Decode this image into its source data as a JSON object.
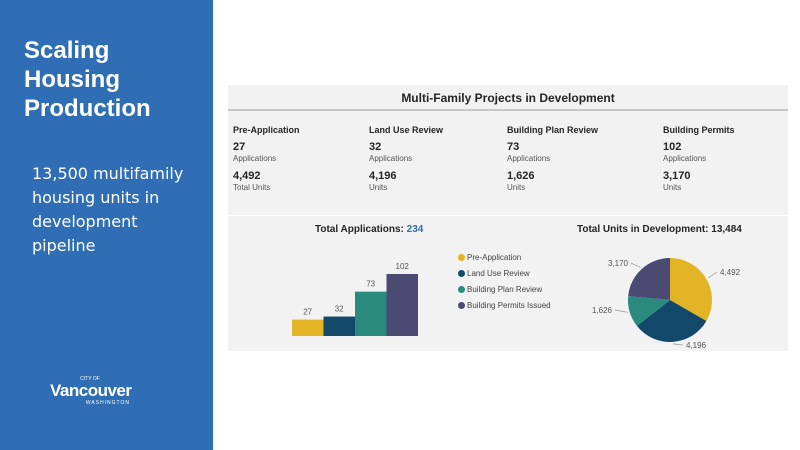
{
  "slide": {
    "title": "Scaling Housing Production",
    "subtitle": "13,500 multifamily housing units in development pipeline",
    "logo": {
      "top": "CITY OF",
      "name": "Vancouver",
      "bottom": "WASHINGTON"
    }
  },
  "card": {
    "title": "Multi-Family Projects in Development",
    "stages": [
      {
        "name": "Pre-Application",
        "applications": "27",
        "applications_label": "Applications",
        "units": "4,492",
        "units_label": "Total Units"
      },
      {
        "name": "Land Use Review",
        "applications": "32",
        "applications_label": "Applications",
        "units": "4,196",
        "units_label": "Units"
      },
      {
        "name": "Building Plan Review",
        "applications": "73",
        "applications_label": "Applications",
        "units": "1,626",
        "units_label": "Units"
      },
      {
        "name": "Building Permits",
        "applications": "102",
        "applications_label": "Applications",
        "units": "3,170",
        "units_label": "Units"
      }
    ]
  },
  "colors": {
    "slide_bg": "#2f6db5",
    "accent": "#2f6db5",
    "series": [
      "#e3b426",
      "#12496b",
      "#2a8a7e",
      "#4a4a72"
    ]
  },
  "chart_data": [
    {
      "type": "bar",
      "title_label": "Total Applications:",
      "title_value": "234",
      "categories": [
        "Pre-Application",
        "Land Use Review",
        "Building Plan Review",
        "Building Permits Issued"
      ],
      "values": [
        27,
        32,
        73,
        102
      ],
      "data_labels": [
        "27",
        "32",
        "73",
        "102"
      ]
    },
    {
      "type": "pie",
      "title": "Total Units in Development: 13,484",
      "categories": [
        "Pre-Application",
        "Land Use Review",
        "Building Plan Review",
        "Building Permits Issued"
      ],
      "values": [
        4492,
        4196,
        1626,
        3170
      ],
      "data_labels": [
        "4,492",
        "4,196",
        "1,626",
        "3,170"
      ]
    }
  ],
  "legend": [
    "Pre-Application",
    "Land Use Review",
    "Building Plan Review",
    "Building Permits Issued"
  ]
}
